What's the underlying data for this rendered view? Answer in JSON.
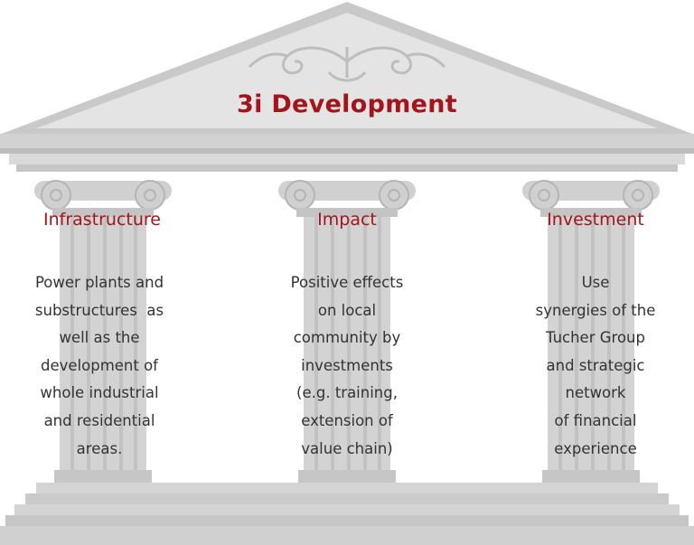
{
  "colors": {
    "accent": "#a3151c",
    "stone": "#cfcfcf",
    "stone_dark": "#b5b5b5",
    "stone_light": "#dcdcdc",
    "text": "#333333"
  },
  "title": "3i Development",
  "pillars": [
    {
      "heading": "Infrastructure",
      "lines": [
        "Power plants and",
        "substructures  as",
        "well as the",
        "development of",
        "whole industrial",
        "and residential",
        "areas."
      ]
    },
    {
      "heading": "Impact",
      "lines": [
        "Positive effects",
        "on local",
        "community by",
        "investments",
        "(e.g. training,",
        "extension of",
        "value chain)"
      ]
    },
    {
      "heading": "Investment",
      "lines": [
        "Use",
        "synergies of the",
        "Tucher Group",
        "and strategic",
        "network",
        "of financial",
        "experience"
      ]
    }
  ]
}
